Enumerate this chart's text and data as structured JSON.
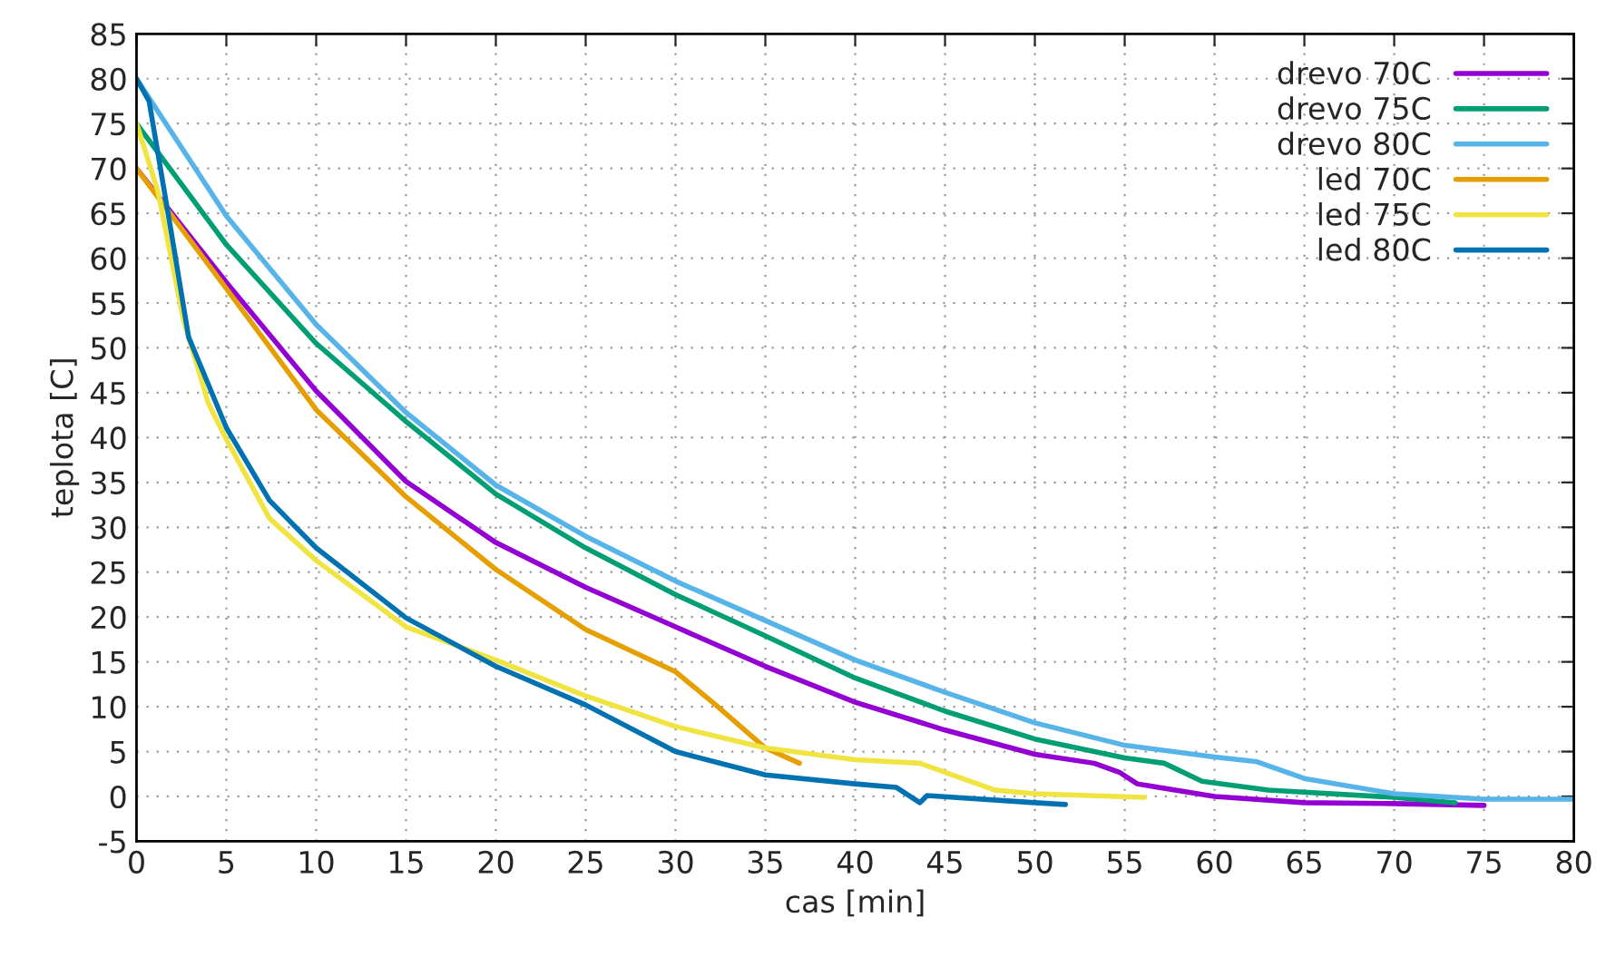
{
  "chart_data": {
    "type": "line",
    "xlabel": "cas [min]",
    "ylabel": "teplota [C]",
    "xlim": [
      0,
      80
    ],
    "xticks": [
      0,
      5,
      10,
      15,
      20,
      25,
      30,
      35,
      40,
      45,
      50,
      55,
      60,
      65,
      70,
      75,
      80
    ],
    "ylim": [
      -5,
      85
    ],
    "yticks": [
      -5,
      0,
      5,
      10,
      15,
      20,
      25,
      30,
      35,
      40,
      45,
      50,
      55,
      60,
      65,
      70,
      75,
      80,
      85
    ],
    "grid": true,
    "legend": "top right",
    "line_style": "solid",
    "marker": "none",
    "series": [
      {
        "name": "drevo 70C",
        "color": "#9400d3",
        "x": [
          0,
          5,
          10,
          15,
          20,
          25,
          30,
          35,
          40,
          45,
          50,
          53.3,
          54.7,
          55.7,
          60,
          65,
          70,
          75
        ],
        "values": [
          70,
          57.3,
          45.2,
          35.1,
          28.3,
          23.3,
          18.9,
          14.5,
          10.5,
          7.4,
          4.7,
          3.7,
          2.7,
          1.4,
          0,
          -0.7,
          -0.8,
          -1.0
        ]
      },
      {
        "name": "drevo 75C",
        "color": "#009e73",
        "x": [
          0,
          5,
          10,
          15,
          20,
          25,
          30,
          35,
          40,
          45,
          50,
          55,
          57.2,
          59.3,
          63,
          70,
          73.4
        ],
        "values": [
          75,
          61.5,
          50.5,
          41.8,
          33.7,
          27.7,
          22.5,
          17.9,
          13.2,
          9.5,
          6.4,
          4.3,
          3.7,
          1.7,
          0.7,
          -0.1,
          -0.7
        ]
      },
      {
        "name": "drevo 80C",
        "color": "#56b4e9",
        "x": [
          0,
          5,
          10,
          15,
          20,
          25,
          30,
          35,
          40,
          45,
          50,
          55,
          60,
          62.3,
          65,
          70,
          75,
          80
        ],
        "values": [
          80,
          64.7,
          52.6,
          42.8,
          34.7,
          29,
          24,
          19.6,
          15.2,
          11.6,
          8.2,
          5.7,
          4.4,
          3.9,
          2.0,
          0.3,
          -0.3,
          -0.3
        ]
      },
      {
        "name": "led 70C",
        "color": "#e69f00",
        "x": [
          0,
          5,
          10,
          15,
          20,
          25,
          30,
          32.3,
          35,
          36.9
        ],
        "values": [
          70,
          56.6,
          43.1,
          33.4,
          25.3,
          18.6,
          13.9,
          10.1,
          5.4,
          3.7
        ]
      },
      {
        "name": "led 75C",
        "color": "#f0e442",
        "x": [
          0,
          1.2,
          2.6,
          4,
          5,
          7.4,
          10,
          15,
          20,
          25,
          30,
          35,
          40,
          43.6,
          45,
          47.8,
          50,
          56.1
        ],
        "values": [
          75,
          67.4,
          53.2,
          43.8,
          39.8,
          31,
          26.3,
          18.9,
          15.2,
          11.2,
          7.8,
          5.4,
          4.1,
          3.7,
          2.7,
          0.7,
          0.3,
          -0.1
        ]
      },
      {
        "name": "led 80C",
        "color": "#0072b2",
        "x": [
          0,
          0.7,
          1.9,
          2.9,
          5,
          7.4,
          10,
          15,
          20,
          25,
          30,
          35,
          40,
          42.3,
          43.6,
          44,
          50,
          51.7
        ],
        "values": [
          80,
          77.5,
          63.3,
          51.2,
          41.1,
          33,
          27.7,
          19.9,
          14.5,
          10.2,
          5.0,
          2.4,
          1.4,
          1.0,
          -0.7,
          0.1,
          -0.7,
          -0.9
        ]
      }
    ]
  }
}
